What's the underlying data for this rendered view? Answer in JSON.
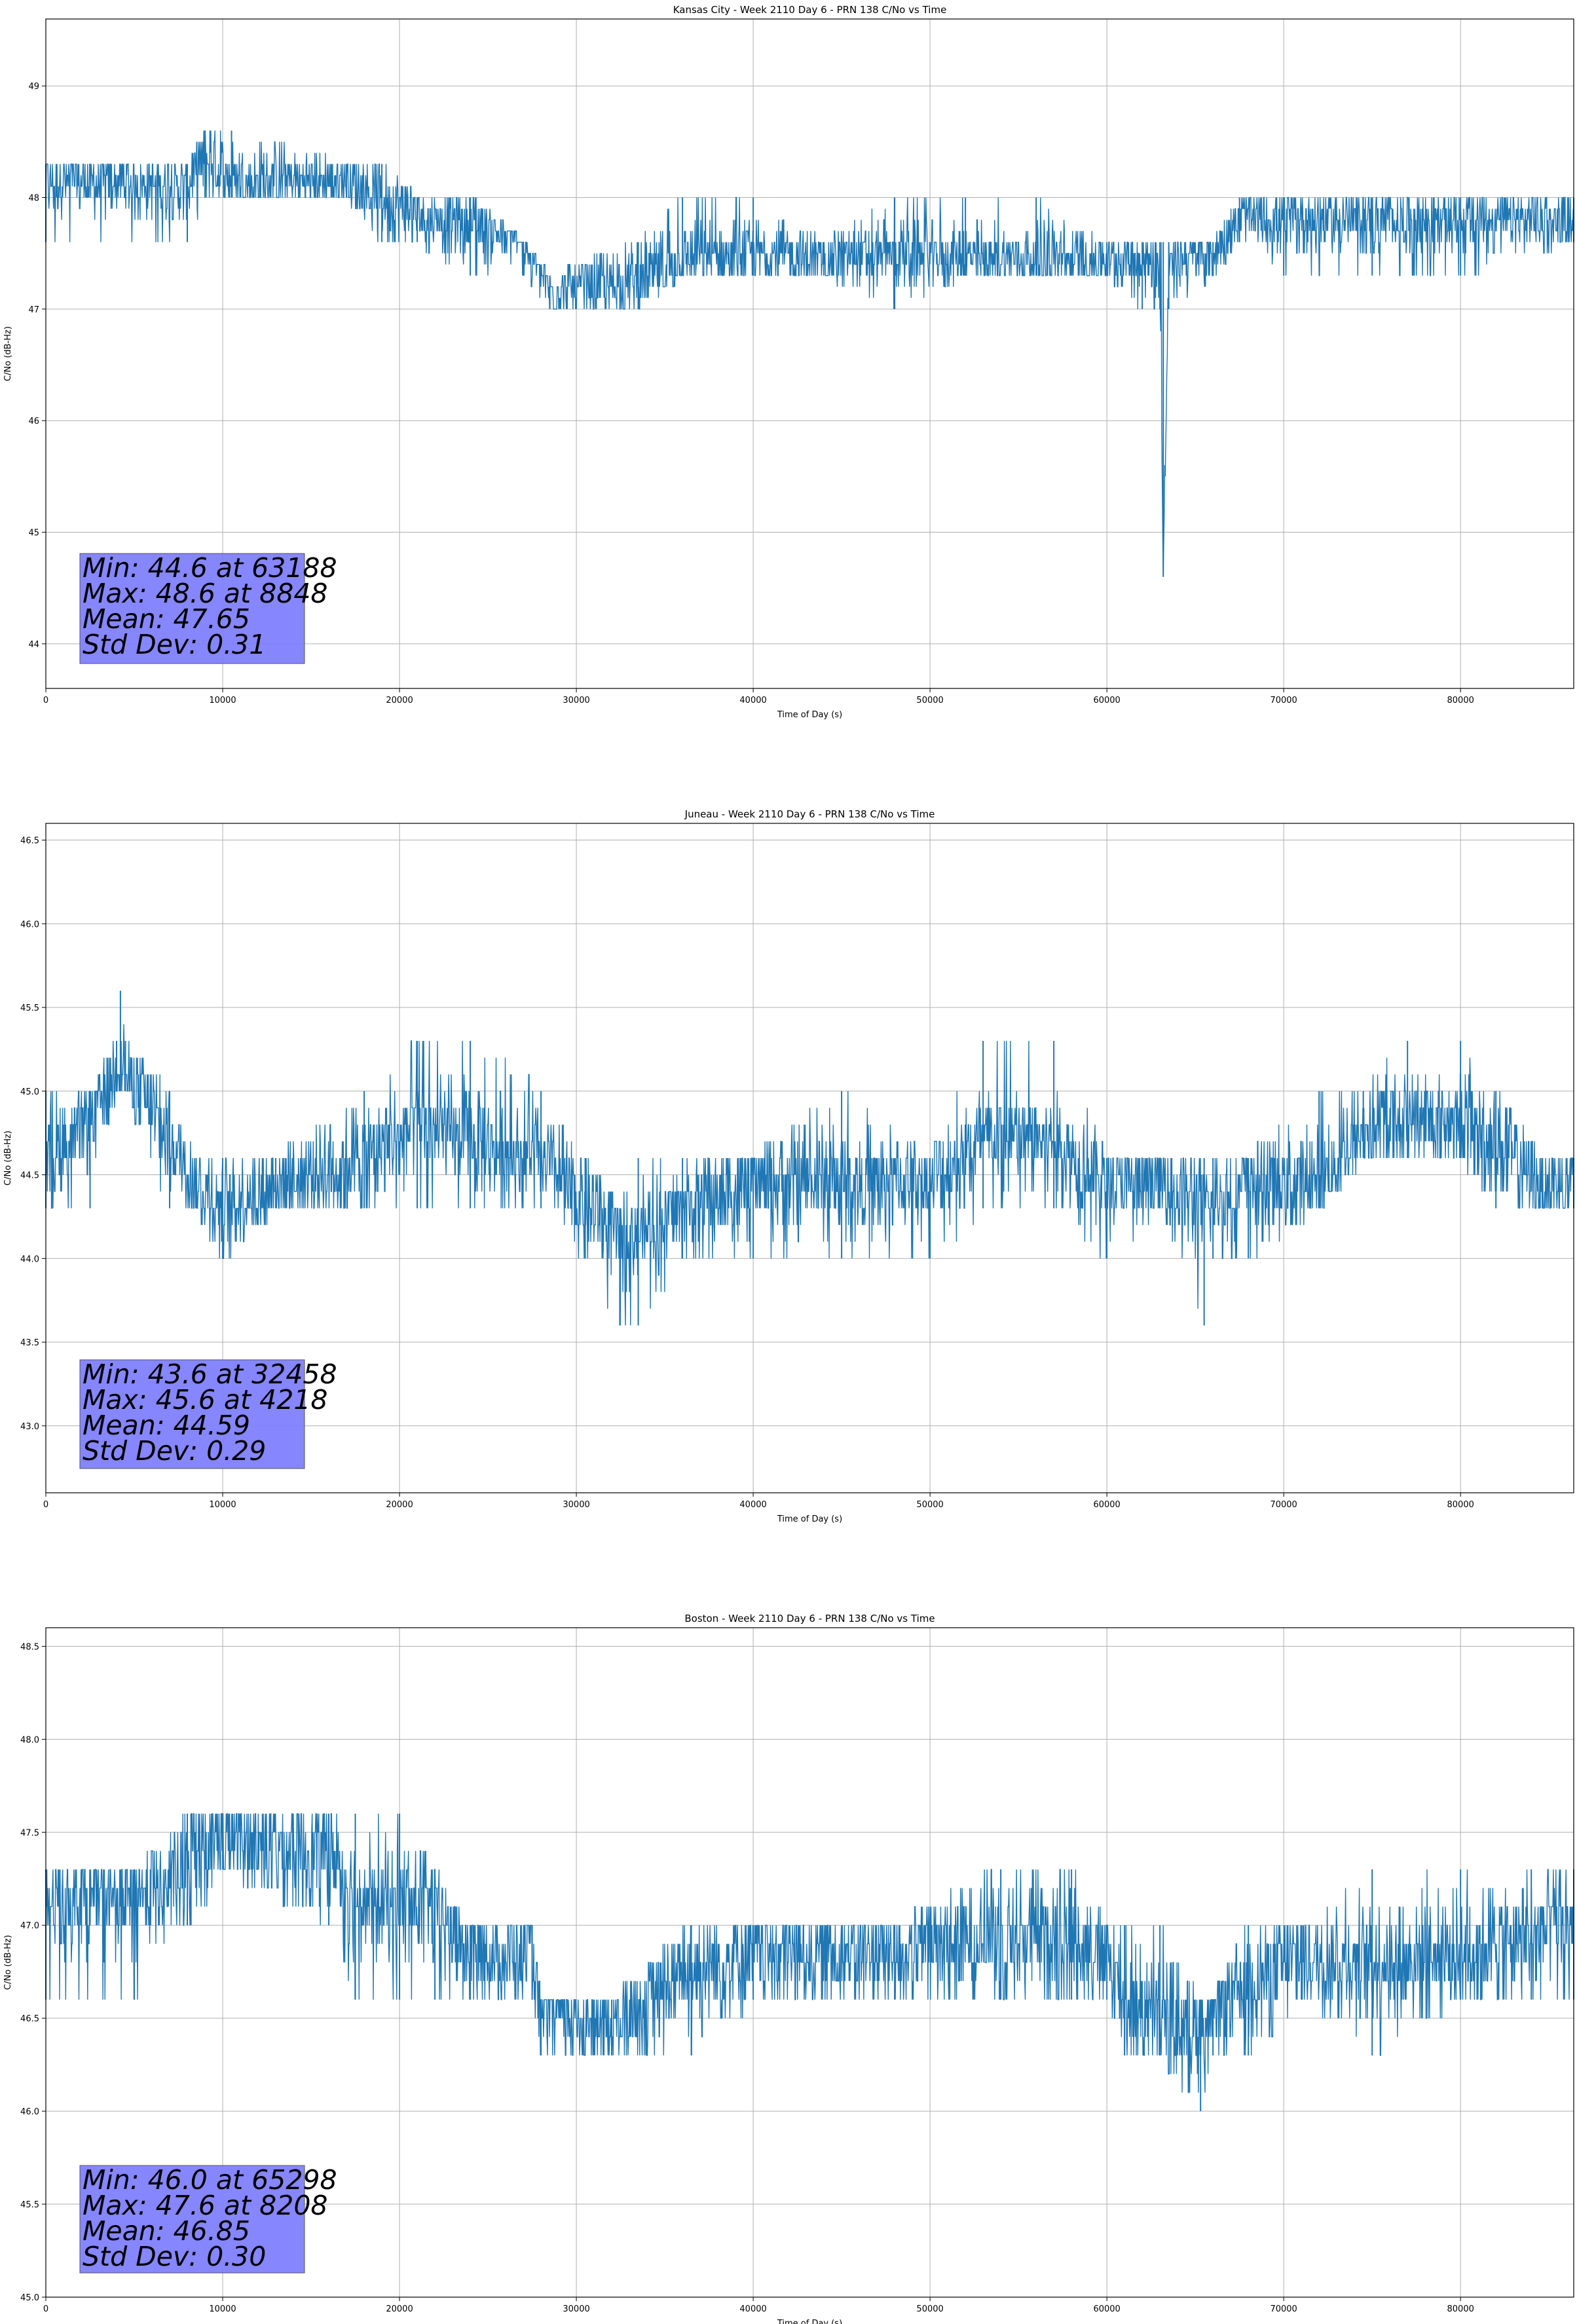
{
  "chart_data": [
    {
      "type": "line",
      "title": "Kansas City - Week 2110 Day 6 - PRN 138 C/No vs Time",
      "xlabel": "Time of Day (s)",
      "ylabel": "C/No (dB-Hz)",
      "xlim": [
        0,
        86400
      ],
      "ylim": [
        43.6,
        49.6
      ],
      "xticks": [
        0,
        10000,
        20000,
        30000,
        40000,
        50000,
        60000,
        70000,
        80000
      ],
      "yticks": [
        44,
        45,
        46,
        47,
        48,
        49
      ],
      "grid": true,
      "color": "#1f77b4",
      "series": [
        {
          "x": [
            0,
            8000,
            9000,
            10500,
            17000,
            19000,
            21000,
            24000,
            27000,
            28500,
            33500,
            36000,
            40000,
            44000,
            48000,
            52000,
            56000,
            60000,
            62000,
            63000,
            63188,
            63500,
            66000,
            67500,
            70000,
            75000,
            80000,
            86400
          ],
          "y": [
            48.15,
            48.1,
            48.35,
            48.15,
            48.15,
            48.0,
            47.85,
            47.75,
            47.65,
            47.15,
            47.25,
            47.45,
            47.5,
            47.45,
            47.5,
            47.45,
            47.45,
            47.45,
            47.45,
            47.4,
            44.6,
            47.4,
            47.5,
            47.8,
            47.8,
            47.8,
            47.8,
            47.8
          ],
          "low": [
            47.6,
            47.6,
            48.0,
            48.0,
            48.0,
            47.6,
            47.6,
            47.3,
            47.3,
            47.0,
            47.0,
            47.3,
            47.3,
            47.3,
            47.0,
            47.3,
            47.3,
            47.3,
            47.0,
            47.0,
            44.6,
            47.0,
            47.3,
            47.6,
            47.3,
            47.3,
            47.3,
            47.6
          ],
          "high": [
            48.3,
            48.3,
            48.6,
            48.6,
            48.3,
            48.3,
            48.0,
            48.0,
            47.6,
            47.3,
            47.6,
            48.0,
            48.0,
            47.6,
            48.0,
            48.0,
            48.0,
            47.6,
            47.6,
            47.6,
            47.6,
            47.6,
            47.6,
            48.0,
            48.0,
            48.0,
            48.0,
            48.0
          ]
        }
      ],
      "stats": [
        "Min: 44.6 at 63188",
        "Max: 48.6 at 8848",
        "Mean: 47.65",
        "Std Dev: 0.31"
      ],
      "stats_box_color": "#8080ff"
    },
    {
      "type": "line",
      "title": "Juneau - Week 2110 Day 6 - PRN 138 C/No vs Time",
      "xlabel": "Time of Day (s)",
      "ylabel": "C/No (dB-Hz)",
      "xlim": [
        0,
        86400
      ],
      "ylim": [
        42.6,
        46.6
      ],
      "xticks": [
        0,
        10000,
        20000,
        30000,
        40000,
        50000,
        60000,
        70000,
        80000
      ],
      "yticks": [
        43.0,
        43.5,
        44.0,
        44.5,
        45.0,
        45.5,
        46.0,
        46.5
      ],
      "grid": true,
      "color": "#1f77b4",
      "series": [
        {
          "x": [
            0,
            2500,
            4000,
            4218,
            4500,
            7000,
            8500,
            10000,
            13000,
            18000,
            21000,
            24000,
            28000,
            30500,
            32458,
            33500,
            36000,
            40000,
            45000,
            50000,
            53000,
            57000,
            60000,
            63000,
            65500,
            66000,
            68000,
            72000,
            74500,
            77000,
            80000,
            82000,
            84500,
            86400
          ],
          "y": [
            44.6,
            44.8,
            45.15,
            45.2,
            45.1,
            44.7,
            44.45,
            44.3,
            44.45,
            44.6,
            44.8,
            44.7,
            44.6,
            44.3,
            44.15,
            44.15,
            44.3,
            44.45,
            44.45,
            44.45,
            44.7,
            44.7,
            44.45,
            44.45,
            44.3,
            44.3,
            44.45,
            44.45,
            44.75,
            44.85,
            44.8,
            44.7,
            44.45,
            44.45
          ],
          "low": [
            44.3,
            44.3,
            45.0,
            45.0,
            45.0,
            44.3,
            44.3,
            44.0,
            44.3,
            44.3,
            44.3,
            44.3,
            44.3,
            44.0,
            43.6,
            43.6,
            44.0,
            44.0,
            44.0,
            44.0,
            44.3,
            44.3,
            44.0,
            44.3,
            43.6,
            44.0,
            44.0,
            44.3,
            44.6,
            44.6,
            44.6,
            44.3,
            44.3,
            44.3
          ],
          "high": [
            45.0,
            45.0,
            45.3,
            45.6,
            45.3,
            45.0,
            44.6,
            44.6,
            44.6,
            45.0,
            45.3,
            45.3,
            45.0,
            44.6,
            44.3,
            44.6,
            44.6,
            44.6,
            45.0,
            44.6,
            45.3,
            45.3,
            44.6,
            44.6,
            44.6,
            44.6,
            44.6,
            45.0,
            45.0,
            45.3,
            45.3,
            45.0,
            44.6,
            44.6
          ]
        }
      ],
      "stats": [
        "Min: 43.6 at 32458",
        "Max: 45.6 at 4218",
        "Mean: 44.59",
        "Std Dev: 0.29"
      ],
      "stats_box_color": "#8080ff"
    },
    {
      "type": "line",
      "title": "Boston - Week 2110 Day 6 - PRN 138 C/No vs Time",
      "xlabel": "Time of Day (s)",
      "ylabel": "C/No (dB-Hz)",
      "xlim": [
        0,
        86400
      ],
      "ylim": [
        45.0,
        48.6
      ],
      "xticks": [
        0,
        10000,
        20000,
        30000,
        40000,
        50000,
        60000,
        70000,
        80000
      ],
      "yticks": [
        45.0,
        45.5,
        46.0,
        46.5,
        47.0,
        47.5,
        48.0,
        48.5
      ],
      "grid": true,
      "color": "#1f77b4",
      "series": [
        {
          "x": [
            0,
            5000,
            8000,
            8208,
            10000,
            16000,
            17500,
            20000,
            22000,
            24000,
            27500,
            28000,
            32000,
            36500,
            40000,
            48000,
            54000,
            58000,
            60000,
            61000,
            63000,
            65298,
            66000,
            68000,
            71000,
            75000,
            80000,
            84000,
            86400
          ],
          "y": [
            47.15,
            47.15,
            47.25,
            47.45,
            47.45,
            47.4,
            47.15,
            47.1,
            47.1,
            46.85,
            46.85,
            46.55,
            46.45,
            46.75,
            46.85,
            46.85,
            46.95,
            46.95,
            46.85,
            46.6,
            46.5,
            46.45,
            46.5,
            46.7,
            46.8,
            46.8,
            46.85,
            46.95,
            47.0
          ],
          "low": [
            46.6,
            46.6,
            47.0,
            47.0,
            47.3,
            47.0,
            46.6,
            46.6,
            46.6,
            46.6,
            46.6,
            46.3,
            46.3,
            46.3,
            46.6,
            46.6,
            46.6,
            46.6,
            46.6,
            46.3,
            46.3,
            46.0,
            46.3,
            46.3,
            46.6,
            46.3,
            46.6,
            46.6,
            46.6
          ],
          "high": [
            47.3,
            47.3,
            47.6,
            47.6,
            47.6,
            47.6,
            47.6,
            47.6,
            47.3,
            47.0,
            47.0,
            46.6,
            46.6,
            47.0,
            47.0,
            47.0,
            47.3,
            47.3,
            47.0,
            47.0,
            47.0,
            46.6,
            46.6,
            47.0,
            47.0,
            47.3,
            47.3,
            47.3,
            47.3
          ]
        }
      ],
      "stats": [
        "Min: 46.0 at 65298",
        "Max: 47.6 at 8208",
        "Mean: 46.85",
        "Std Dev: 0.30"
      ],
      "stats_box_color": "#8080ff"
    }
  ]
}
